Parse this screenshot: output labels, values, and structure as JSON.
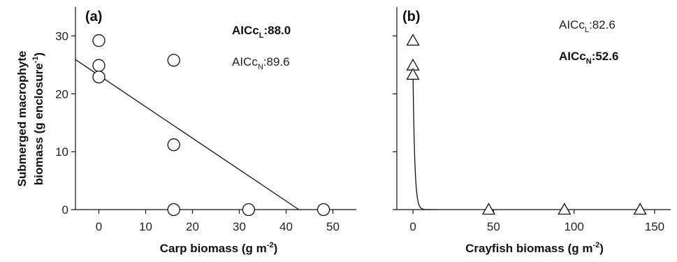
{
  "figure": {
    "ylabel_line1": "Submerged macrophyte",
    "ylabel_line2_main": "biomass (g enclosure",
    "ylabel_line2_sup": "-1",
    "ylabel_line2_close": ")"
  },
  "panels": [
    {
      "label": "(a)",
      "xlabel_main": "Carp biomass (g m",
      "xlabel_sup": "-2",
      "xlabel_close": ")",
      "aic": [
        {
          "prefix": "AICc",
          "sub": "L",
          "value": ":88.0",
          "bold": true
        },
        {
          "prefix": "AICc",
          "sub": "N",
          "value": ":89.6",
          "bold": false
        }
      ]
    },
    {
      "label": "(b)",
      "xlabel_main": "Crayfish biomass (g m",
      "xlabel_sup": "-2",
      "xlabel_close": ")",
      "aic": [
        {
          "prefix": "AICc",
          "sub": "L",
          "value": ":82.6",
          "bold": false
        },
        {
          "prefix": "AICc",
          "sub": "N",
          "value": ":52.6",
          "bold": true
        }
      ]
    }
  ],
  "chart_data": [
    {
      "type": "scatter",
      "title": "(a)",
      "xlabel": "Carp biomass (g m-2)",
      "ylabel": "Submerged macrophyte biomass (g enclosure-1)",
      "xlim": [
        -5,
        55
      ],
      "ylim": [
        0,
        35
      ],
      "xticks": [
        0,
        10,
        20,
        30,
        40,
        50
      ],
      "yticks": [
        0,
        10,
        20,
        30
      ],
      "marker": "circle",
      "points": [
        {
          "x": 0,
          "y": 29.2
        },
        {
          "x": 0,
          "y": 24.9
        },
        {
          "x": 0,
          "y": 22.9
        },
        {
          "x": 16,
          "y": 25.8
        },
        {
          "x": 16,
          "y": 11.2
        },
        {
          "x": 16,
          "y": 0
        },
        {
          "x": 32,
          "y": 0
        },
        {
          "x": 48,
          "y": 0
        }
      ],
      "fit": {
        "model": "linear",
        "intercept": 23.2,
        "slope": -0.543,
        "x_range": [
          -5,
          42.7
        ]
      },
      "annotations": [
        "AICcL:88.0",
        "AICcN:89.6"
      ]
    },
    {
      "type": "scatter",
      "title": "(b)",
      "xlabel": "Crayfish biomass (g m-2)",
      "xlim": [
        -10,
        160
      ],
      "ylim": [
        0,
        35
      ],
      "xticks": [
        0,
        50,
        100,
        150
      ],
      "yticks": [
        0,
        10,
        20,
        30
      ],
      "marker": "triangle",
      "points": [
        {
          "x": 0,
          "y": 29.2
        },
        {
          "x": 0,
          "y": 24.9
        },
        {
          "x": 0,
          "y": 23.3
        },
        {
          "x": 47,
          "y": 0
        },
        {
          "x": 94,
          "y": 0
        },
        {
          "x": 141,
          "y": 0
        }
      ],
      "fit": {
        "model": "exponential",
        "a": 24.0,
        "k": 0.9,
        "x_range": [
          0,
          15
        ]
      },
      "annotations": [
        "AICcL:82.6",
        "AICcN:52.6"
      ]
    }
  ]
}
